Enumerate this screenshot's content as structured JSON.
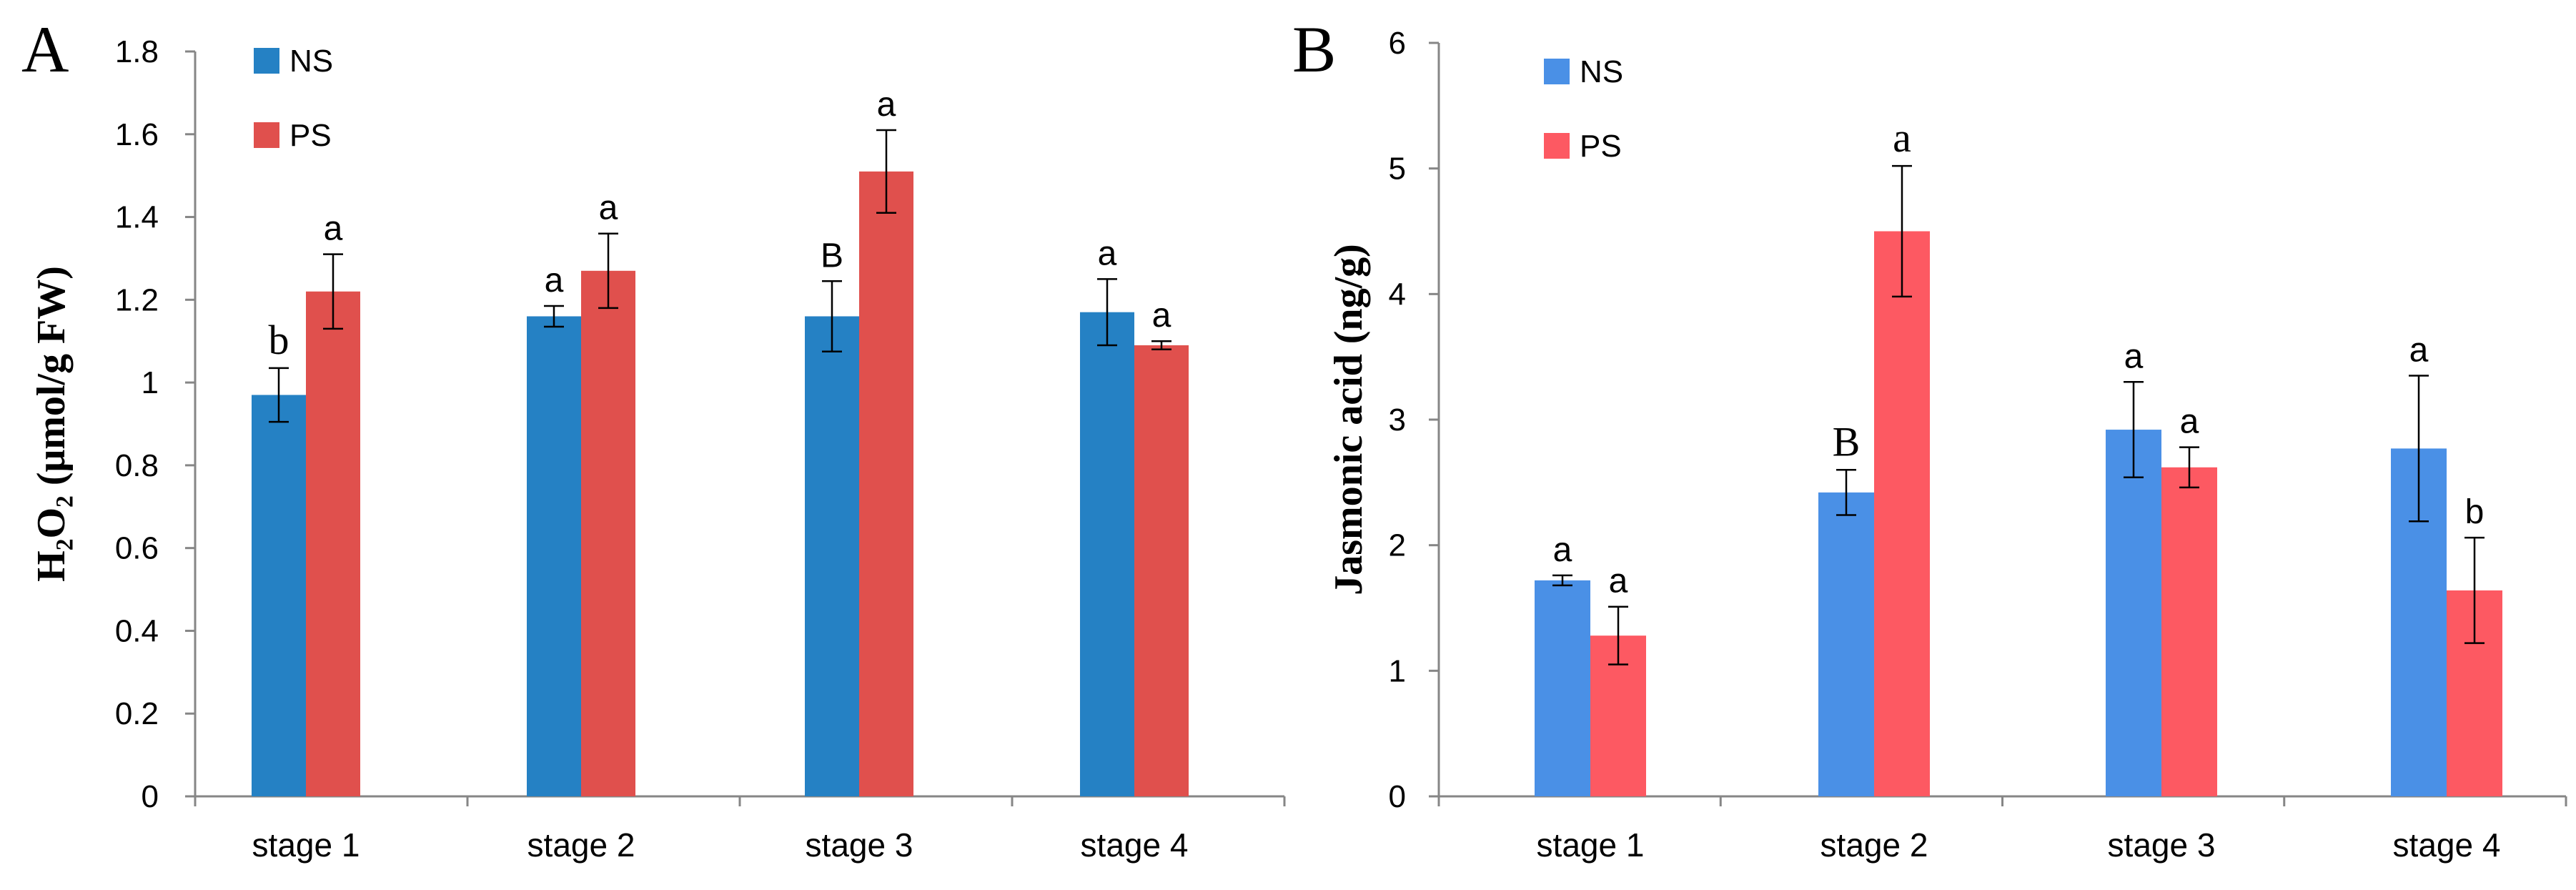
{
  "chart_data": [
    {
      "panel": "A",
      "type": "bar",
      "title": "",
      "xlabel": "",
      "ylabel": "H₂O₂ (μmol/g FW)",
      "ylim": [
        0,
        1.8
      ],
      "yticks": [
        "0",
        "0.2",
        "0.4",
        "0.6",
        "0.8",
        "1",
        "1.2",
        "1.4",
        "1.6",
        "1.8"
      ],
      "yticks_values": [
        0,
        0.2,
        0.4,
        0.6,
        0.8,
        1.0,
        1.2,
        1.4,
        1.6,
        1.8
      ],
      "categories": [
        "stage 1",
        "stage 2",
        "stage 3",
        "stage 4"
      ],
      "legend_position": "top-left",
      "grid": false,
      "series": [
        {
          "name": "NS",
          "color": "#2581c4",
          "values": [
            0.97,
            1.16,
            1.16,
            1.17
          ],
          "errors": [
            0.065,
            0.025,
            0.085,
            0.08
          ],
          "labels": [
            "b",
            "a",
            "B",
            "a"
          ]
        },
        {
          "name": "PS",
          "color": "#e0504d",
          "values": [
            1.22,
            1.27,
            1.51,
            1.09
          ],
          "errors": [
            0.09,
            0.09,
            0.1,
            0.01
          ],
          "labels": [
            "a",
            "a",
            "a",
            "a"
          ]
        }
      ]
    },
    {
      "panel": "B",
      "type": "bar",
      "title": "",
      "xlabel": "",
      "ylabel": "Jasmonic acid (ng/g)",
      "ylim": [
        0,
        6
      ],
      "yticks": [
        "0",
        "1",
        "2",
        "3",
        "4",
        "5",
        "6"
      ],
      "yticks_values": [
        0,
        1,
        2,
        3,
        4,
        5,
        6
      ],
      "categories": [
        "stage 1",
        "stage 2",
        "stage 3",
        "stage 4"
      ],
      "legend_position": "top-left",
      "grid": false,
      "series": [
        {
          "name": "NS",
          "color": "#4a90e6",
          "values": [
            1.72,
            2.42,
            2.92,
            2.77
          ],
          "errors": [
            0.04,
            0.18,
            0.38,
            0.58
          ],
          "labels": [
            "a",
            "B",
            "a",
            "a"
          ]
        },
        {
          "name": "PS",
          "color": "#fd5962",
          "values": [
            1.28,
            4.5,
            2.62,
            1.64
          ],
          "errors": [
            0.23,
            0.52,
            0.16,
            0.42
          ],
          "labels": [
            "a",
            "a",
            "a",
            "b"
          ]
        }
      ]
    }
  ]
}
